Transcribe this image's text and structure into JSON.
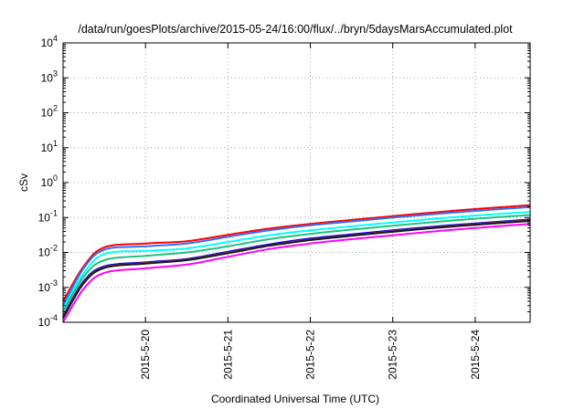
{
  "chart_data": {
    "type": "line",
    "title": "/data/run/goesPlots/archive/2015-05-24/16:00/flux/../bryn/5daysMarsAccumulated.plot",
    "xlabel": "Coordinated Universal Time (UTC)",
    "ylabel": "cSv",
    "y_scale": "log",
    "ylim": [
      0.0001,
      10000
    ],
    "xlim": [
      "2015-05-19 00:00",
      "2015-05-24 16:00"
    ],
    "grid": true,
    "legend": "none",
    "x_ticks": [
      "2015-5-20",
      "2015-5-21",
      "2015-5-22",
      "2015-5-23",
      "2015-5-24"
    ],
    "y_ticks": [
      {
        "value": 0.0001,
        "base": "10",
        "exp": "-4"
      },
      {
        "value": 0.001,
        "base": "10",
        "exp": "-3"
      },
      {
        "value": 0.01,
        "base": "10",
        "exp": "-2"
      },
      {
        "value": 0.1,
        "base": "10",
        "exp": "-1"
      },
      {
        "value": 1,
        "base": "10",
        "exp": "0"
      },
      {
        "value": 10,
        "base": "10",
        "exp": "1"
      },
      {
        "value": 100,
        "base": "10",
        "exp": "2"
      },
      {
        "value": 1000,
        "base": "10",
        "exp": "3"
      },
      {
        "value": 10000,
        "base": "10",
        "exp": "4"
      }
    ],
    "x": [
      "2015-05-19 00:00",
      "2015-05-19 06:00",
      "2015-05-19 12:00",
      "2015-05-20 00:00",
      "2015-05-20 12:00",
      "2015-05-21 00:00",
      "2015-05-21 12:00",
      "2015-05-22 00:00",
      "2015-05-22 12:00",
      "2015-05-23 00:00",
      "2015-05-23 12:00",
      "2015-05-24 00:00",
      "2015-05-24 16:00"
    ],
    "series": [
      {
        "color": "#ff0000",
        "values": [
          0.0004,
          0.004,
          0.014,
          0.018,
          0.021,
          0.032,
          0.048,
          0.066,
          0.085,
          0.11,
          0.14,
          0.175,
          0.225
        ]
      },
      {
        "color": "#2f6fff",
        "values": [
          0.0003,
          0.0035,
          0.012,
          0.015,
          0.018,
          0.028,
          0.043,
          0.06,
          0.077,
          0.1,
          0.125,
          0.155,
          0.2
        ]
      },
      {
        "color": "#00ffff",
        "values": [
          0.00025,
          0.0025,
          0.009,
          0.011,
          0.013,
          0.02,
          0.031,
          0.043,
          0.056,
          0.072,
          0.092,
          0.114,
          0.145
        ]
      },
      {
        "color": "#20c080",
        "values": [
          0.0002,
          0.002,
          0.006,
          0.008,
          0.01,
          0.015,
          0.024,
          0.034,
          0.045,
          0.058,
          0.074,
          0.092,
          0.118
        ]
      },
      {
        "color": "#0000ff",
        "values": [
          0.00015,
          0.0015,
          0.004,
          0.0052,
          0.0065,
          0.0105,
          0.017,
          0.025,
          0.033,
          0.043,
          0.055,
          0.068,
          0.088
        ]
      },
      {
        "color": "#7a3050",
        "values": [
          0.00014,
          0.0014,
          0.0038,
          0.005,
          0.0062,
          0.01,
          0.016,
          0.0235,
          0.031,
          0.041,
          0.052,
          0.065,
          0.084
        ]
      },
      {
        "color": "#1a1a1a",
        "values": [
          0.00013,
          0.0013,
          0.0036,
          0.0048,
          0.006,
          0.0095,
          0.0155,
          0.0225,
          0.03,
          0.039,
          0.05,
          0.062,
          0.08
        ]
      },
      {
        "color": "#ff00ff",
        "values": [
          0.0001,
          0.0009,
          0.0026,
          0.0035,
          0.0045,
          0.0075,
          0.0125,
          0.018,
          0.024,
          0.031,
          0.04,
          0.05,
          0.066
        ]
      }
    ]
  }
}
